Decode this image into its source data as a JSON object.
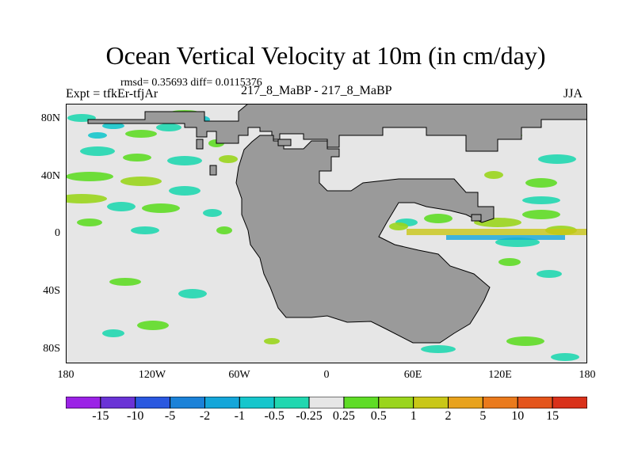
{
  "title": "Ocean Vertical Velocity at 10m (in cm/day)",
  "stats_text": "rmsd= 0.35693 diff= 0.0115376",
  "experiment_text": "Expt = tfkEr-tfjAr",
  "runs_text": "217_8_MaBP - 217_8_MaBP",
  "season": "JJA",
  "map": {
    "projection": "cylindrical equidistant",
    "lon_range": [
      -180,
      180
    ],
    "lat_range": [
      -90,
      90
    ],
    "land_color": "#9a9a9a",
    "background_color": "#e6e6e6",
    "x_ticks": [
      "180",
      "120W",
      "60W",
      "0",
      "60E",
      "120E",
      "180"
    ],
    "y_ticks": [
      "80N",
      "40N",
      "0",
      "40S",
      "80S"
    ]
  },
  "colorbar": {
    "labels": [
      "-15",
      "-10",
      "-5",
      "-2",
      "-1",
      "-0.5",
      "-0.25",
      "0.25",
      "0.5",
      "1",
      "2",
      "5",
      "10",
      "15"
    ],
    "colors": [
      "#9b22e6",
      "#6a33d6",
      "#2a58e0",
      "#1b82d8",
      "#14a6d9",
      "#16c6cc",
      "#21d7b0",
      "#e6e6e6",
      "#5fdc26",
      "#9ad51d",
      "#c9c717",
      "#e8a21c",
      "#ea7a1c",
      "#e4541b",
      "#d9311a"
    ]
  }
}
